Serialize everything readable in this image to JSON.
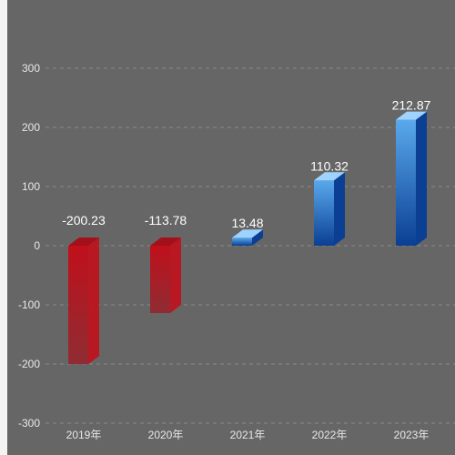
{
  "chart_data": {
    "type": "bar",
    "categories": [
      "2019年",
      "2020年",
      "2021年",
      "2022年",
      "2023年"
    ],
    "values": [
      -200.23,
      -113.78,
      13.48,
      110.32,
      212.87
    ],
    "value_labels": [
      "-200.23",
      "-113.78",
      "13.48",
      "110.32",
      "212.87"
    ],
    "y_ticks": [
      "300",
      "200",
      "100",
      "0",
      "-100",
      "-200",
      "-300"
    ],
    "ylim": [
      -300,
      300
    ],
    "grid": true,
    "style": "3d-bar",
    "colors": {
      "negative_top": "#c0101b",
      "negative_bottom": "#8f2c33",
      "positive_top": "#5aa9ec",
      "positive_bottom": "#0a3f93",
      "positive_cap": "#9fd3ff",
      "negative_cap": "#a31019"
    }
  }
}
